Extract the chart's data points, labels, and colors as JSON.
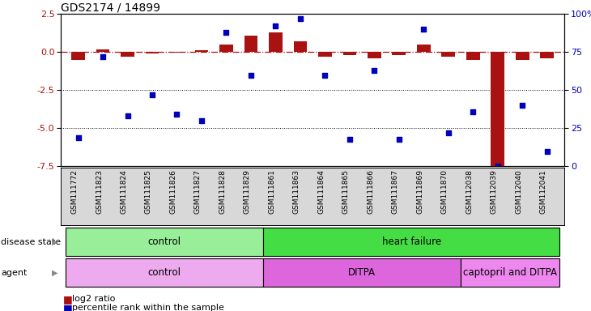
{
  "title": "GDS2174 / 14899",
  "samples": [
    "GSM111772",
    "GSM111823",
    "GSM111824",
    "GSM111825",
    "GSM111826",
    "GSM111827",
    "GSM111828",
    "GSM111829",
    "GSM111861",
    "GSM111863",
    "GSM111864",
    "GSM111865",
    "GSM111866",
    "GSM111867",
    "GSM111869",
    "GSM111870",
    "GSM112038",
    "GSM112039",
    "GSM112040",
    "GSM112041"
  ],
  "log2_ratio": [
    -0.5,
    0.15,
    -0.3,
    -0.1,
    -0.05,
    0.1,
    0.5,
    1.1,
    1.3,
    0.7,
    -0.3,
    -0.2,
    -0.4,
    -0.2,
    0.5,
    -0.3,
    -0.5,
    -7.5,
    -0.5,
    -0.4
  ],
  "pct_rank": [
    19,
    72,
    33,
    47,
    34,
    30,
    88,
    60,
    92,
    97,
    60,
    18,
    63,
    18,
    90,
    22,
    36,
    0,
    40,
    10
  ],
  "left_ylim": [
    -7.5,
    2.5
  ],
  "right_ylim": [
    0,
    100
  ],
  "left_yticks": [
    2.5,
    0.0,
    -2.5,
    -5.0,
    -7.5
  ],
  "right_yticks": [
    100,
    75,
    50,
    25,
    0
  ],
  "disease_groups": [
    {
      "label": "control",
      "start": 0,
      "end": 7,
      "color": "#99EE99"
    },
    {
      "label": "heart failure",
      "start": 8,
      "end": 19,
      "color": "#44DD44"
    }
  ],
  "agent_groups": [
    {
      "label": "control",
      "start": 0,
      "end": 7,
      "color": "#EEAAEE"
    },
    {
      "label": "DITPA",
      "start": 8,
      "end": 15,
      "color": "#DD66DD"
    },
    {
      "label": "captopril and DITPA",
      "start": 16,
      "end": 19,
      "color": "#EE88EE"
    }
  ],
  "bar_color": "#AA1111",
  "dot_color": "#0000BB",
  "ref_line_color": "#AA1111",
  "bar_width": 0.55,
  "dot_size": 22,
  "label_row1": "disease state",
  "label_row2": "agent",
  "legend_bar": "log2 ratio",
  "legend_dot": "percentile rank within the sample",
  "title_fontsize": 10,
  "tick_fontsize": 8,
  "sample_fontsize": 6.5,
  "row_fontsize": 8.5,
  "legend_fontsize": 8,
  "row_label_fontsize": 8
}
